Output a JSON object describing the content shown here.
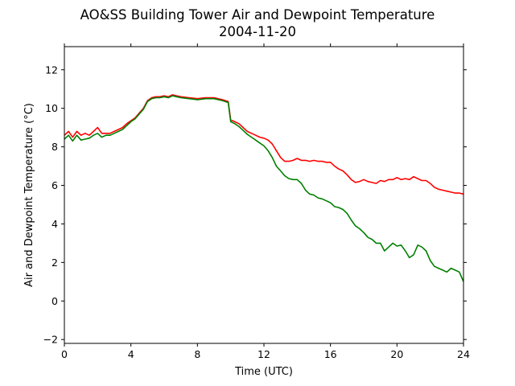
{
  "chart_data": {
    "type": "line",
    "title": "AO&SS Building Tower Air and Dewpoint Temperature",
    "subtitle": "2004-11-20",
    "xlabel": "Time (UTC)",
    "ylabel": "Air and Dewpoint Temperature (°C)",
    "xlim": [
      0,
      24
    ],
    "ylim": [
      -2.2,
      13.2
    ],
    "xticks": [
      0,
      4,
      8,
      12,
      16,
      20,
      24
    ],
    "yticks": [
      -2,
      0,
      2,
      4,
      6,
      8,
      10,
      12
    ],
    "grid": false,
    "legend": "none",
    "series": [
      {
        "color": "#ff0000",
        "x": [
          0,
          0.25,
          0.5,
          0.75,
          1.0,
          1.25,
          1.5,
          1.75,
          2.0,
          2.25,
          2.5,
          2.75,
          3.0,
          3.25,
          3.5,
          3.75,
          4.0,
          4.25,
          4.5,
          4.75,
          5.0,
          5.25,
          5.5,
          5.75,
          6.0,
          6.25,
          6.5,
          6.75,
          7.0,
          7.5,
          8.0,
          8.5,
          9.0,
          9.5,
          9.85,
          10.0,
          10.25,
          10.5,
          10.75,
          11.0,
          11.25,
          11.5,
          11.75,
          12.0,
          12.25,
          12.5,
          12.75,
          13.0,
          13.25,
          13.5,
          13.75,
          14.0,
          14.25,
          14.5,
          14.75,
          15.0,
          15.25,
          15.5,
          15.75,
          16.0,
          16.25,
          16.5,
          16.75,
          17.0,
          17.25,
          17.5,
          17.75,
          18.0,
          18.25,
          18.5,
          18.75,
          19.0,
          19.25,
          19.5,
          19.75,
          20.0,
          20.25,
          20.5,
          20.75,
          21.0,
          21.25,
          21.5,
          21.75,
          22.0,
          22.25,
          22.5,
          22.75,
          23.0,
          23.25,
          23.5,
          23.75,
          24.0
        ],
        "y": [
          8.6,
          8.8,
          8.5,
          8.8,
          8.6,
          8.7,
          8.6,
          8.8,
          9.0,
          8.7,
          8.7,
          8.7,
          8.8,
          8.9,
          9.0,
          9.2,
          9.35,
          9.5,
          9.75,
          10.0,
          10.4,
          10.55,
          10.6,
          10.6,
          10.65,
          10.6,
          10.7,
          10.65,
          10.6,
          10.55,
          10.5,
          10.55,
          10.55,
          10.45,
          10.35,
          9.4,
          9.3,
          9.2,
          9.0,
          8.8,
          8.7,
          8.6,
          8.5,
          8.45,
          8.35,
          8.15,
          7.8,
          7.45,
          7.25,
          7.25,
          7.3,
          7.4,
          7.3,
          7.3,
          7.25,
          7.3,
          7.25,
          7.25,
          7.2,
          7.2,
          7.0,
          6.85,
          6.75,
          6.55,
          6.3,
          6.15,
          6.2,
          6.3,
          6.2,
          6.15,
          6.1,
          6.25,
          6.2,
          6.3,
          6.3,
          6.4,
          6.3,
          6.35,
          6.3,
          6.45,
          6.35,
          6.25,
          6.25,
          6.1,
          5.9,
          5.8,
          5.75,
          5.7,
          5.65,
          5.6,
          5.6,
          5.55
        ]
      },
      {
        "color": "#008000",
        "x": [
          0,
          0.25,
          0.5,
          0.75,
          1.0,
          1.25,
          1.5,
          1.75,
          2.0,
          2.25,
          2.5,
          2.75,
          3.0,
          3.25,
          3.5,
          3.75,
          4.0,
          4.25,
          4.5,
          4.75,
          5.0,
          5.25,
          5.5,
          5.75,
          6.0,
          6.25,
          6.5,
          6.75,
          7.0,
          7.5,
          8.0,
          8.5,
          9.0,
          9.5,
          9.85,
          10.0,
          10.25,
          10.5,
          10.75,
          11.0,
          11.25,
          11.5,
          11.75,
          12.0,
          12.25,
          12.5,
          12.75,
          13.0,
          13.25,
          13.5,
          13.75,
          14.0,
          14.25,
          14.5,
          14.75,
          15.0,
          15.25,
          15.5,
          15.75,
          16.0,
          16.25,
          16.5,
          16.75,
          17.0,
          17.25,
          17.5,
          17.75,
          18.0,
          18.25,
          18.5,
          18.75,
          19.0,
          19.25,
          19.5,
          19.75,
          20.0,
          20.25,
          20.5,
          20.75,
          21.0,
          21.25,
          21.5,
          21.75,
          22.0,
          22.25,
          22.5,
          22.75,
          23.0,
          23.25,
          23.5,
          23.75,
          24.0
        ],
        "y": [
          8.4,
          8.6,
          8.3,
          8.6,
          8.35,
          8.4,
          8.45,
          8.6,
          8.7,
          8.5,
          8.6,
          8.6,
          8.7,
          8.8,
          8.9,
          9.1,
          9.3,
          9.45,
          9.7,
          9.95,
          10.35,
          10.5,
          10.55,
          10.55,
          10.6,
          10.55,
          10.65,
          10.6,
          10.55,
          10.5,
          10.45,
          10.5,
          10.5,
          10.4,
          10.3,
          9.3,
          9.2,
          9.05,
          8.85,
          8.65,
          8.5,
          8.35,
          8.2,
          8.05,
          7.8,
          7.45,
          7.0,
          6.75,
          6.5,
          6.35,
          6.3,
          6.3,
          6.1,
          5.75,
          5.55,
          5.5,
          5.35,
          5.3,
          5.2,
          5.1,
          4.9,
          4.85,
          4.75,
          4.55,
          4.2,
          3.9,
          3.75,
          3.55,
          3.3,
          3.2,
          3.0,
          3.0,
          2.6,
          2.8,
          3.0,
          2.85,
          2.9,
          2.6,
          2.25,
          2.4,
          2.9,
          2.8,
          2.6,
          2.1,
          1.8,
          1.7,
          1.6,
          1.5,
          1.7,
          1.6,
          1.5,
          1.0
        ]
      }
    ]
  }
}
